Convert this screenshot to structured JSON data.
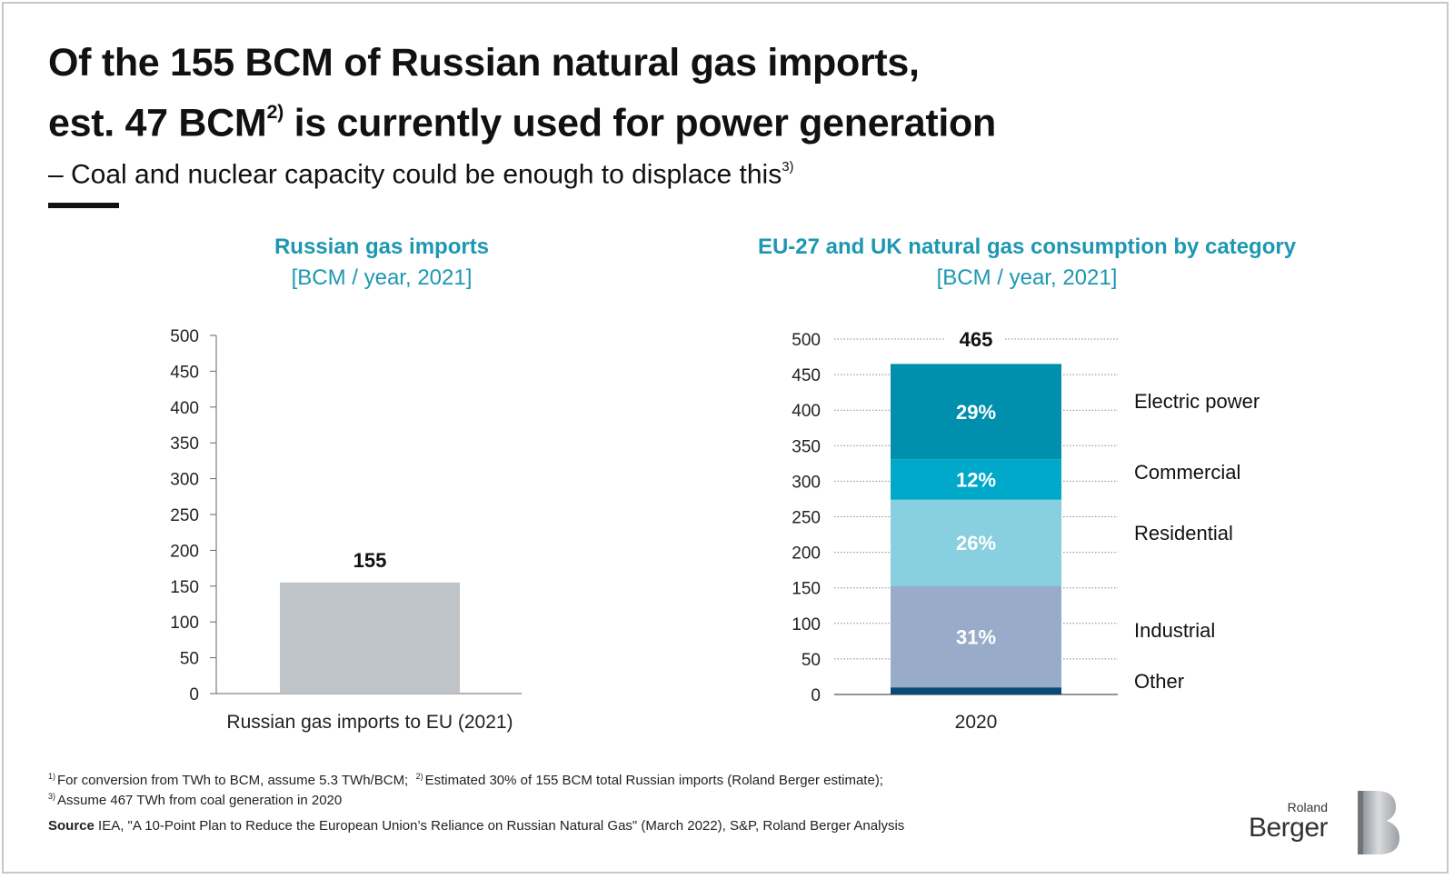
{
  "title": {
    "line1": "Of the 155 BCM of Russian natural gas imports,",
    "line2_pre": "est. 47 BCM",
    "line2_sup": "2)",
    "line2_post": " is currently used for power generation"
  },
  "subtitle": {
    "text": "– Coal and nuclear capacity could be enough to displace this",
    "sup": "3)"
  },
  "chart_data": [
    {
      "type": "bar",
      "title": "Russian gas imports",
      "unit": "[BCM / year, 2021]",
      "categories": [
        "Russian gas imports to EU (2021)"
      ],
      "values": [
        155
      ],
      "data_labels": [
        "155"
      ],
      "ylim": [
        0,
        500
      ],
      "yticks": [
        0,
        50,
        100,
        150,
        200,
        250,
        300,
        350,
        400,
        450,
        500
      ],
      "bar_color": "#bfc4c9"
    },
    {
      "type": "bar",
      "stacked": true,
      "title": "EU-27 and UK natural gas consumption by category",
      "unit": "[BCM / year, 2021]",
      "categories": [
        "2020"
      ],
      "total": 465,
      "total_label": "465",
      "ylim": [
        0,
        500
      ],
      "yticks": [
        0,
        50,
        100,
        150,
        200,
        250,
        300,
        350,
        400,
        450,
        500
      ],
      "grid": "dotted",
      "series": [
        {
          "name": "Other",
          "value": 10,
          "label": "",
          "color": "#0b4a72"
        },
        {
          "name": "Industrial",
          "value": 143,
          "label": "31%",
          "color": "#98acca"
        },
        {
          "name": "Residential",
          "value": 121,
          "label": "26%",
          "color": "#88cfe0"
        },
        {
          "name": "Commercial",
          "value": 57,
          "label": "12%",
          "color": "#00a8c9"
        },
        {
          "name": "Electric power",
          "value": 134,
          "label": "29%",
          "color": "#0090ad"
        }
      ]
    }
  ],
  "footnotes": {
    "n1_sup": "1)",
    "n1": "For conversion from TWh to BCM, assume 5.3 TWh/BCM;",
    "n2_sup": "2)",
    "n2": "Estimated 30% of 155 BCM total Russian imports (Roland Berger estimate);",
    "n3_sup": "3)",
    "n3": "Assume 467 TWh from coal generation in 2020",
    "source_label": "Source",
    "source_text": " IEA, \"A 10-Point Plan to Reduce the European Union’s Reliance on Russian Natural Gas\" (March 2022), S&P, Roland Berger Analysis"
  },
  "logo": {
    "line1": "Roland",
    "line2": "Berger"
  }
}
